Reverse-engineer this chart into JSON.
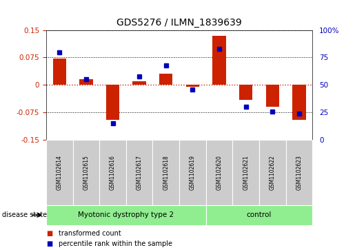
{
  "title": "GDS5276 / ILMN_1839639",
  "samples": [
    "GSM1102614",
    "GSM1102615",
    "GSM1102616",
    "GSM1102617",
    "GSM1102618",
    "GSM1102619",
    "GSM1102620",
    "GSM1102621",
    "GSM1102622",
    "GSM1102623"
  ],
  "transformed_count": [
    0.073,
    0.015,
    -0.095,
    0.01,
    0.03,
    -0.005,
    0.135,
    -0.04,
    -0.06,
    -0.095
  ],
  "percentile_rank": [
    80,
    55,
    15,
    58,
    68,
    46,
    83,
    30,
    26,
    24
  ],
  "group_info": [
    {
      "label": "Myotonic dystrophy type 2",
      "start": 0,
      "end": 6
    },
    {
      "label": "control",
      "start": 6,
      "end": 10
    }
  ],
  "disease_state_label": "disease state",
  "ylim_left": [
    -0.15,
    0.15
  ],
  "ylim_right": [
    0,
    100
  ],
  "yticks_left": [
    -0.15,
    -0.075,
    0,
    0.075,
    0.15
  ],
  "yticks_left_labels": [
    "-0.15",
    "-0.075",
    "0",
    "0.075",
    "0.15"
  ],
  "yticks_right": [
    0,
    25,
    50,
    75,
    100
  ],
  "yticks_right_labels": [
    "0",
    "25",
    "50",
    "75",
    "100%"
  ],
  "bar_color": "#CC2200",
  "dot_color": "#0000BB",
  "hline_color": "#CC2200",
  "sample_box_color": "#CCCCCC",
  "group_color": "#90EE90",
  "legend_items": [
    "transformed count",
    "percentile rank within the sample"
  ]
}
